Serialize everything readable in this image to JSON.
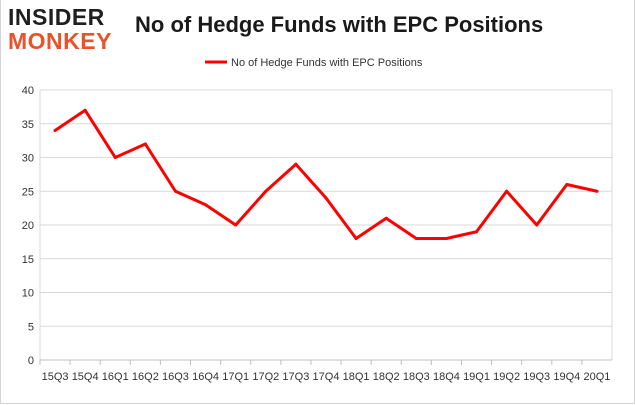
{
  "logo": {
    "line1": "INSIDER",
    "line2": "MONKEY"
  },
  "chart_data": {
    "type": "line",
    "title": "No of Hedge Funds with EPC Positions",
    "xlabel": "",
    "ylabel": "",
    "categories": [
      "15Q3",
      "15Q4",
      "16Q1",
      "16Q2",
      "16Q3",
      "16Q4",
      "17Q1",
      "17Q2",
      "17Q3",
      "17Q4",
      "18Q1",
      "18Q2",
      "18Q3",
      "18Q4",
      "19Q1",
      "19Q2",
      "19Q3",
      "19Q4",
      "20Q1"
    ],
    "series": [
      {
        "name": "No of Hedge Funds with EPC Positions",
        "color": "#ff0000",
        "values": [
          34,
          37,
          30,
          32,
          25,
          23,
          20,
          25,
          29,
          24,
          18,
          21,
          18,
          18,
          19,
          25,
          20,
          26,
          25
        ]
      }
    ],
    "ylim": [
      0,
      40
    ],
    "yticks": [
      0,
      5,
      10,
      15,
      20,
      25,
      30,
      35,
      40
    ],
    "grid": true,
    "legend_position": "top-center"
  }
}
